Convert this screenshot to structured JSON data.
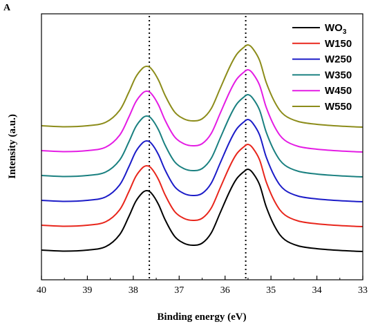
{
  "chart_data": {
    "type": "line",
    "panel_label": "A",
    "xlabel": "Binding energy (eV)",
    "ylabel": "Intensity (a.u.)",
    "xlim": [
      40,
      33
    ],
    "x_reversed": true,
    "x_ticks": [
      "40",
      "39",
      "38",
      "37",
      "36",
      "35",
      "34",
      "33"
    ],
    "y_ticks": [],
    "legend_position": "top-right",
    "reference_lines": [
      37.65,
      35.55
    ],
    "series": [
      {
        "name": "WO3",
        "name_base": "WO",
        "name_sub": "3",
        "color": "#000000",
        "baseline": 0.0,
        "x": [
          40,
          39.5,
          39.0,
          38.6,
          38.3,
          38.1,
          37.95,
          37.8,
          37.7,
          37.6,
          37.45,
          37.3,
          37.1,
          36.9,
          36.7,
          36.5,
          36.3,
          36.1,
          35.9,
          35.75,
          35.6,
          35.5,
          35.4,
          35.25,
          35.1,
          34.9,
          34.7,
          34.4,
          34.0,
          33.5,
          33.0
        ],
        "y": [
          0.0,
          -0.015,
          0.0,
          0.05,
          0.22,
          0.48,
          0.7,
          0.83,
          0.86,
          0.82,
          0.66,
          0.43,
          0.2,
          0.1,
          0.07,
          0.1,
          0.25,
          0.55,
          0.85,
          1.03,
          1.13,
          1.17,
          1.12,
          0.95,
          0.62,
          0.32,
          0.15,
          0.06,
          0.02,
          -0.005,
          -0.02
        ]
      },
      {
        "name": "W150",
        "color": "#e8261c",
        "baseline": 0.36,
        "x": [
          40,
          39.5,
          39.0,
          38.6,
          38.3,
          38.1,
          37.95,
          37.8,
          37.7,
          37.6,
          37.45,
          37.3,
          37.1,
          36.9,
          36.7,
          36.5,
          36.3,
          36.1,
          35.9,
          35.75,
          35.6,
          35.5,
          35.4,
          35.25,
          35.1,
          34.9,
          34.7,
          34.4,
          34.0,
          33.5,
          33.0
        ],
        "y": [
          0.0,
          -0.015,
          0.0,
          0.05,
          0.22,
          0.48,
          0.7,
          0.83,
          0.86,
          0.82,
          0.66,
          0.43,
          0.2,
          0.1,
          0.07,
          0.1,
          0.25,
          0.55,
          0.85,
          1.03,
          1.13,
          1.17,
          1.12,
          0.95,
          0.62,
          0.32,
          0.15,
          0.06,
          0.02,
          -0.005,
          -0.02
        ]
      },
      {
        "name": "W250",
        "color": "#1c1cc8",
        "baseline": 0.72,
        "x": [
          40,
          39.5,
          39.0,
          38.6,
          38.3,
          38.1,
          37.95,
          37.8,
          37.7,
          37.6,
          37.45,
          37.3,
          37.1,
          36.9,
          36.7,
          36.5,
          36.3,
          36.1,
          35.9,
          35.75,
          35.6,
          35.5,
          35.4,
          35.25,
          35.1,
          34.9,
          34.7,
          34.4,
          34.0,
          33.5,
          33.0
        ],
        "y": [
          0.0,
          -0.015,
          0.0,
          0.05,
          0.22,
          0.48,
          0.7,
          0.83,
          0.86,
          0.82,
          0.66,
          0.43,
          0.2,
          0.1,
          0.07,
          0.1,
          0.25,
          0.55,
          0.85,
          1.03,
          1.13,
          1.17,
          1.12,
          0.95,
          0.62,
          0.32,
          0.15,
          0.06,
          0.02,
          -0.005,
          -0.02
        ]
      },
      {
        "name": "W350",
        "color": "#1a8080",
        "baseline": 1.08,
        "x": [
          40,
          39.5,
          39.0,
          38.6,
          38.3,
          38.1,
          37.95,
          37.8,
          37.7,
          37.6,
          37.45,
          37.3,
          37.1,
          36.9,
          36.7,
          36.5,
          36.3,
          36.1,
          35.9,
          35.75,
          35.6,
          35.5,
          35.4,
          35.25,
          35.1,
          34.9,
          34.7,
          34.4,
          34.0,
          33.5,
          33.0
        ],
        "y": [
          0.0,
          -0.015,
          0.0,
          0.05,
          0.22,
          0.48,
          0.7,
          0.83,
          0.86,
          0.82,
          0.66,
          0.43,
          0.2,
          0.1,
          0.07,
          0.1,
          0.25,
          0.55,
          0.85,
          1.03,
          1.13,
          1.17,
          1.12,
          0.95,
          0.62,
          0.32,
          0.15,
          0.06,
          0.02,
          -0.005,
          -0.02
        ]
      },
      {
        "name": "W450",
        "color": "#e41ce4",
        "baseline": 1.44,
        "x": [
          40,
          39.5,
          39.0,
          38.6,
          38.3,
          38.1,
          37.95,
          37.8,
          37.7,
          37.6,
          37.45,
          37.3,
          37.1,
          36.9,
          36.7,
          36.5,
          36.3,
          36.1,
          35.9,
          35.75,
          35.6,
          35.5,
          35.4,
          35.25,
          35.1,
          34.9,
          34.7,
          34.4,
          34.0,
          33.5,
          33.0
        ],
        "y": [
          0.0,
          -0.015,
          0.0,
          0.05,
          0.22,
          0.48,
          0.7,
          0.83,
          0.86,
          0.82,
          0.66,
          0.43,
          0.2,
          0.1,
          0.07,
          0.1,
          0.25,
          0.55,
          0.85,
          1.03,
          1.13,
          1.17,
          1.12,
          0.95,
          0.62,
          0.32,
          0.15,
          0.06,
          0.02,
          -0.005,
          -0.02
        ]
      },
      {
        "name": "W550",
        "color": "#8c8c1a",
        "baseline": 1.8,
        "x": [
          40,
          39.5,
          39.0,
          38.6,
          38.3,
          38.1,
          37.95,
          37.8,
          37.7,
          37.6,
          37.45,
          37.3,
          37.1,
          36.9,
          36.7,
          36.5,
          36.3,
          36.1,
          35.9,
          35.75,
          35.6,
          35.5,
          35.4,
          35.25,
          35.1,
          34.9,
          34.7,
          34.4,
          34.0,
          33.5,
          33.0
        ],
        "y": [
          0.0,
          -0.015,
          0.0,
          0.05,
          0.22,
          0.48,
          0.7,
          0.83,
          0.86,
          0.82,
          0.66,
          0.43,
          0.2,
          0.1,
          0.07,
          0.1,
          0.25,
          0.55,
          0.85,
          1.03,
          1.13,
          1.17,
          1.12,
          0.95,
          0.62,
          0.32,
          0.15,
          0.06,
          0.02,
          -0.005,
          -0.02
        ]
      }
    ]
  }
}
